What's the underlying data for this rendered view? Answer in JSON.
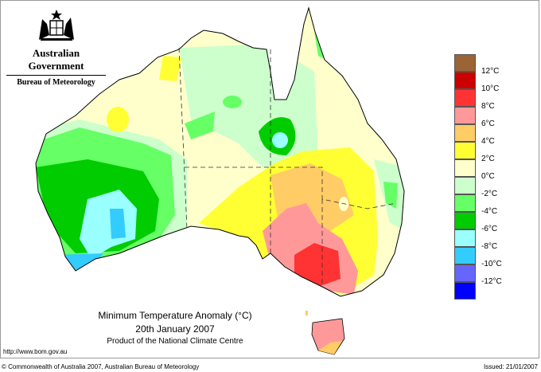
{
  "header": {
    "government": "Australian Government",
    "bureau": "Bureau of Meteorology"
  },
  "title": {
    "main": "Minimum Temperature Anomaly (°C)",
    "date": "20th January 2007",
    "product": "Product of the National Climate Centre"
  },
  "footer": {
    "url": "http://www.bom.gov.au",
    "copyright": "© Commonwealth of Australia 2007, Australian Bureau of Meteorology",
    "issued": "Issued: 21/01/2007"
  },
  "legend": {
    "colors": [
      "#9b6435",
      "#cc0000",
      "#ff3333",
      "#ff9999",
      "#ffcc66",
      "#ffff33",
      "#ffffcc",
      "#ccffcc",
      "#66ff66",
      "#00cc00",
      "#99ffff",
      "#33ccff",
      "#6666ff",
      "#0000ff"
    ],
    "labels": [
      "12°C",
      "10°C",
      "8°C",
      "6°C",
      "4°C",
      "2°C",
      "0°C",
      "-2°C",
      "-4°C",
      "-6°C",
      "-8°C",
      "-10°C",
      "-12°C"
    ]
  }
}
